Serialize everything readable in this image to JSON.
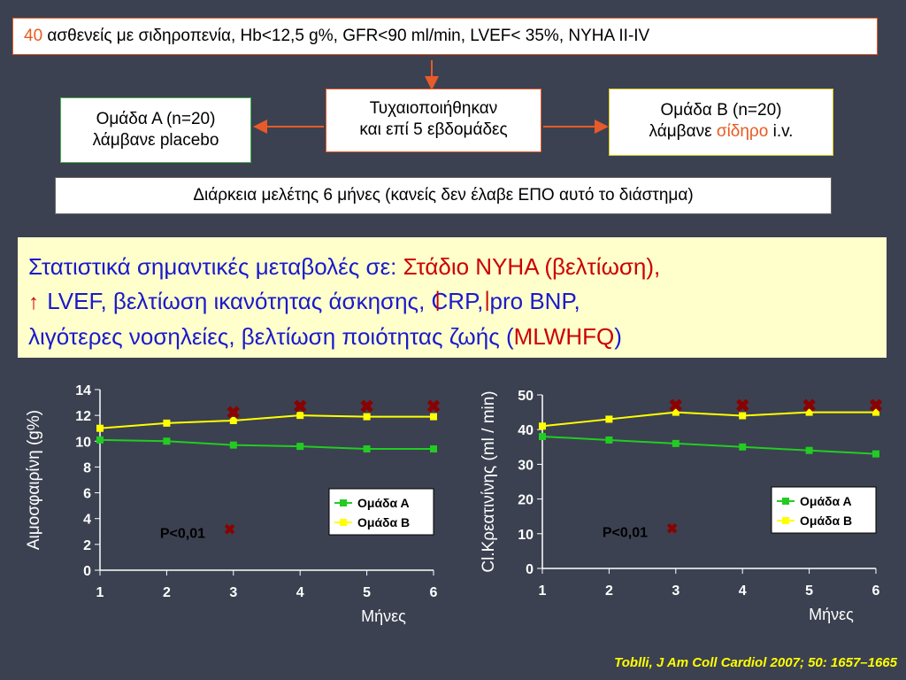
{
  "header": {
    "count": "40",
    "text": " ασθενείς με σιδηροπενία, Hb<12,5 g%, GFR<90 ml/min, LVEF< 35%, NYHA II-IV"
  },
  "group_a": {
    "line1": "Ομάδα Α (n=20)",
    "line2": "λάμβανε placebo"
  },
  "randomized": {
    "line1": "Τυχαιοποιήθηκαν",
    "line2": "και επί 5 εβδομάδες"
  },
  "group_b": {
    "line1": "Ομάδα Β (n=20)",
    "line2_prefix": "λάμβανε ",
    "line2_drug": "σίδηρο",
    "line2_suffix": " i.v."
  },
  "duration": "Διάρκεια μελέτης 6 μήνες (κανείς δεν έλαβε ΕΠΟ αυτό το διάστημα)",
  "results": {
    "intro": "Στατιστικά σημαντικές μεταβολές σε: ",
    "nyha": "Στάδιο NYHA (βελτίωση),",
    "line2a": " LVEF, βελτίωση ικανότητας άσκησης, ",
    "crp": "CRP, ",
    "bnp": "pro BNP,",
    "line3a": "λιγότερες νοσηλείες, βελτίωση ποιότητας ζωής (",
    "mlwhfq": "MLWHFQ",
    "line3b": ")"
  },
  "citation": "Toblli, J Am Coll Cardiol 2007; 50: 1657–1665",
  "chart_data": [
    {
      "type": "line",
      "x": [
        1,
        2,
        3,
        4,
        5,
        6
      ],
      "series": [
        {
          "name": "Ομάδα Α",
          "values": [
            10.1,
            10.0,
            9.7,
            9.6,
            9.4,
            9.4
          ],
          "color": "#22cc22"
        },
        {
          "name": "Ομάδα Β",
          "values": [
            11.0,
            11.4,
            11.6,
            12.0,
            11.9,
            11.9
          ],
          "color": "#ffff00"
        }
      ],
      "significance_markers": [
        3,
        4,
        5,
        6
      ],
      "marker_y": [
        12.2,
        12.7,
        12.7,
        12.7
      ],
      "annotation": "P<0,01",
      "xlabel": "Μήνες",
      "ylabel": "Αιμοσφαιρίνη (g%)",
      "ylim": [
        0,
        14
      ],
      "yticks": [
        0,
        2,
        4,
        6,
        8,
        10,
        12,
        14
      ],
      "legend": "right"
    },
    {
      "type": "line",
      "x": [
        1,
        2,
        3,
        4,
        5,
        6
      ],
      "series": [
        {
          "name": "Ομάδα Α",
          "values": [
            38,
            37,
            36,
            35,
            34,
            33
          ],
          "color": "#22cc22"
        },
        {
          "name": "Ομάδα Β",
          "values": [
            41,
            43,
            45,
            44,
            45,
            45
          ],
          "color": "#ffff00"
        }
      ],
      "significance_markers": [
        3,
        4,
        5,
        6
      ],
      "marker_y": [
        47,
        47,
        47,
        47
      ],
      "annotation": "P<0,01",
      "xlabel": "Μήνες",
      "ylabel": "Cl.Κρεατινίνης (ml / min)",
      "ylim": [
        0,
        50
      ],
      "yticks": [
        0,
        10,
        20,
        30,
        40,
        50
      ],
      "legend": "right"
    }
  ]
}
